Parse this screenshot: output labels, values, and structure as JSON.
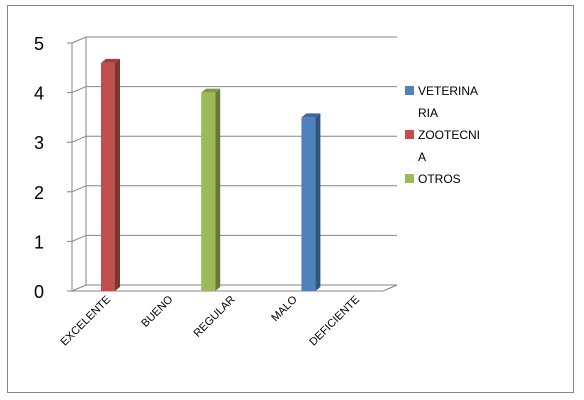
{
  "chart_data": {
    "type": "bar",
    "categories": [
      "EXCELENTE",
      "BUENO",
      "REGULAR",
      "MALO",
      "DEFICIENTE"
    ],
    "series": [
      {
        "name": "VETERINARIA",
        "legend_lines": [
          "VETERINA",
          "RIA"
        ],
        "color": "#4f81bd",
        "values": [
          0,
          0,
          3.5,
          0,
          0
        ]
      },
      {
        "name": "ZOOTECNIA",
        "legend_lines": [
          "ZOOTECNI",
          "A"
        ],
        "color": "#c0504d",
        "values": [
          4.6,
          0,
          0,
          0,
          0
        ]
      },
      {
        "name": "OTROS",
        "legend_lines": [
          "OTROS"
        ],
        "color": "#9bbb59",
        "values": [
          0,
          4.0,
          0,
          0,
          0
        ]
      }
    ],
    "yticks": [
      "0",
      "1",
      "2",
      "3",
      "4",
      "5"
    ],
    "ylim": [
      0,
      5
    ],
    "grid": true,
    "legend": "right"
  }
}
